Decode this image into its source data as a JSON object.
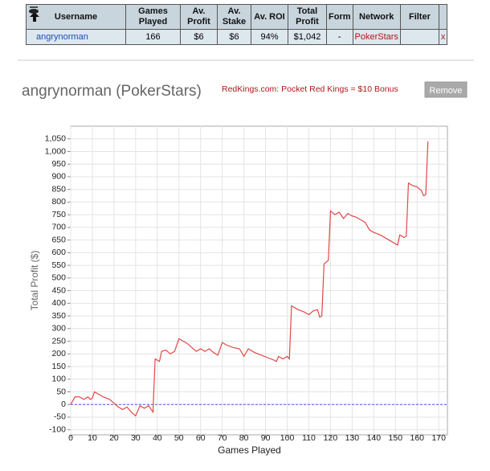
{
  "table": {
    "columns": [
      "Username",
      "Games Played",
      "Av. Profit",
      "Av. Stake",
      "Av. ROI",
      "Total Profit",
      "Form",
      "Network",
      "Filter"
    ],
    "rows": [
      [
        "angrynorman",
        "166",
        "$6",
        "$6",
        "94%",
        "$1,042",
        "-",
        "PokerStars"
      ]
    ],
    "remove": "x"
  },
  "profile": {
    "title": "angrynorman (PokerStars)",
    "promo": "RedKings.com: Pocket Red Kings = $10 Bonus",
    "button": "Remove"
  },
  "chart_data": {
    "type": "line",
    "xlabel": "Games Played",
    "ylabel": "Total Profit ($)",
    "x": [
      0,
      2,
      4,
      6,
      8,
      9,
      10,
      11,
      13,
      15,
      18,
      20,
      22,
      24,
      26,
      28,
      30,
      32,
      34,
      36,
      38,
      39,
      41,
      42,
      44,
      46,
      48,
      50,
      52,
      54,
      56,
      58,
      60,
      62,
      64,
      66,
      68,
      70,
      72,
      75,
      78,
      80,
      82,
      85,
      88,
      91,
      94,
      95,
      96,
      98,
      100,
      101,
      102,
      105,
      108,
      110,
      112,
      114,
      115,
      116,
      117,
      119,
      120,
      122,
      124,
      126,
      128,
      130,
      132,
      134,
      136,
      138,
      140,
      143,
      146,
      149,
      151,
      152,
      154,
      155,
      156,
      158,
      160,
      162,
      163,
      164,
      165
    ],
    "values": [
      0,
      30,
      30,
      20,
      30,
      20,
      25,
      50,
      40,
      30,
      20,
      5,
      -10,
      -20,
      -10,
      -30,
      -45,
      -5,
      -15,
      -5,
      -30,
      180,
      170,
      210,
      215,
      200,
      210,
      260,
      250,
      240,
      225,
      210,
      220,
      210,
      220,
      205,
      195,
      245,
      235,
      225,
      220,
      190,
      220,
      205,
      195,
      185,
      175,
      170,
      190,
      180,
      190,
      180,
      390,
      375,
      365,
      355,
      370,
      375,
      345,
      350,
      555,
      570,
      765,
      750,
      760,
      735,
      755,
      745,
      740,
      730,
      720,
      690,
      680,
      670,
      655,
      640,
      630,
      670,
      660,
      665,
      875,
      865,
      860,
      845,
      825,
      830,
      1040
    ],
    "color": "#e04848",
    "baseline": 0,
    "baseline_color": "#5555dd",
    "xlim": [
      0,
      174
    ],
    "ylim": [
      -120,
      1100
    ],
    "xticks": [
      0,
      10,
      20,
      30,
      40,
      50,
      60,
      70,
      80,
      90,
      100,
      110,
      120,
      130,
      140,
      150,
      160,
      170
    ],
    "yticks": [
      -100,
      -50,
      0,
      50,
      100,
      150,
      200,
      250,
      300,
      350,
      400,
      450,
      500,
      550,
      600,
      650,
      700,
      750,
      800,
      850,
      900,
      950,
      {
        "value": 1000,
        "label": "1,000"
      },
      {
        "value": 1050,
        "label": "1,050"
      }
    ],
    "grid": true
  }
}
